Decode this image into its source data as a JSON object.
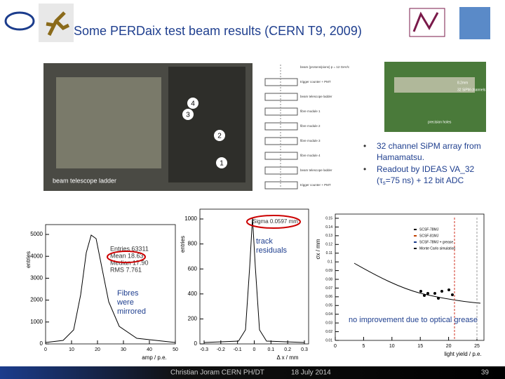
{
  "header": {
    "title": "Some PERDaix test beam results (CERN T9, 2009)"
  },
  "photo": {
    "labels": [
      "4",
      "3",
      "2",
      "1"
    ],
    "caption": "beam telescope ladder"
  },
  "diagram": {
    "labels": [
      "beam (protons/pions) p = 12 GeV/c",
      "trigger counter + PMT",
      "beam telescope ladder",
      "fibre module 1",
      "fibre module 2",
      "fibre module 3",
      "fibre module 4",
      "beam telescope ladder",
      "trigger counter + PMT"
    ]
  },
  "sipm_photo": {
    "labels": [
      "8.2mm",
      "32 SiPM channels",
      "precision holes"
    ]
  },
  "bullets": [
    {
      "text": "32 channel SiPM array from Hamamatsu."
    },
    {
      "before": "Readout by IDEAS VA_32 (",
      "symbol": "τ",
      "sub": "s",
      "after": "=75 ns) + 12 bit ADC"
    }
  ],
  "plots": [
    {
      "y_label": "entries",
      "x_label": "amp / p.e.",
      "yticks": [
        "0",
        "1000",
        "2000",
        "3000",
        "4000",
        "5000"
      ],
      "xticks": [
        "0",
        "10",
        "20",
        "30",
        "40",
        "50"
      ],
      "stats": [
        "Entries 63311",
        "Mean 18.63",
        "Median 17.90",
        "RMS 7.761"
      ]
    },
    {
      "y_label": "entries",
      "x_label": "Δ x / mm",
      "yticks": [
        "0",
        "200",
        "400",
        "600",
        "800",
        "1000"
      ],
      "xticks": [
        "-0.3",
        "-0.2",
        "-0.1",
        "0",
        "0.1",
        "0.2",
        "0.3"
      ],
      "stats": [
        "Sigma 0.0597 mm"
      ]
    },
    {
      "y_label": "σx / mm",
      "x_label": "light yield / p.e.",
      "yticks": [
        "0.01",
        "0.02",
        "0.03",
        "0.04",
        "0.05",
        "0.06",
        "0.07",
        "0.08",
        "0.09",
        "0.1",
        "0.11",
        "0.12",
        "0.13",
        "0.14",
        "0.15"
      ],
      "xticks": [
        "0",
        "5",
        "10",
        "15",
        "20",
        "25"
      ],
      "legend": [
        "SCSF-78MJ",
        "SCSF-81MJ",
        "SCSF-78MJ + grease",
        "Monte Carlo simulation"
      ]
    }
  ],
  "annotations": [
    "Fibres were mirrored",
    "track residuals",
    "no improvement due to optical grease"
  ],
  "footer": {
    "author": "Christian Joram CERN PH/DT",
    "date": "18 July 2014",
    "page": "39"
  }
}
